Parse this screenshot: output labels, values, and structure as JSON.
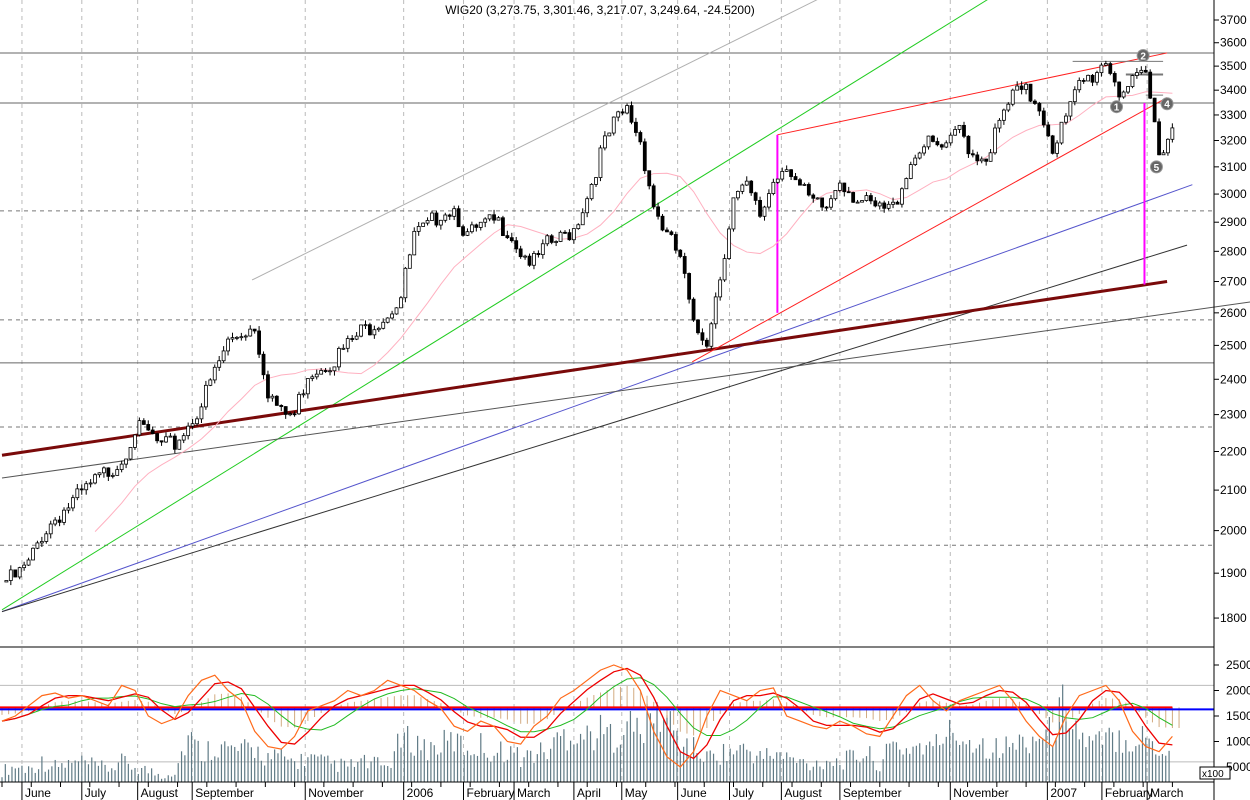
{
  "chart_data": {
    "type": "candlestick",
    "title": "WIG20 (3,273.75, 3,301.46, 3,217.07, 3,249.64, -24.5200)",
    "price_scale": "log",
    "ylim": [
      1750,
      3800
    ],
    "price_ticks": [
      1800,
      1900,
      2000,
      2100,
      2200,
      2300,
      2400,
      2500,
      2600,
      2700,
      2800,
      2900,
      3000,
      3100,
      3200,
      3300,
      3400,
      3500,
      3600,
      3700
    ],
    "x_labels": [
      {
        "label": "June",
        "idx": 1.5
      },
      {
        "label": "July",
        "idx": 6
      },
      {
        "label": "August",
        "idx": 10.2
      },
      {
        "label": "September",
        "idx": 14.3
      },
      {
        "label": "November",
        "idx": 22.8
      },
      {
        "label": "2006",
        "idx": 30.2
      },
      {
        "label": "February",
        "idx": 34.7
      },
      {
        "label": "March",
        "idx": 38.5
      },
      {
        "label": "April",
        "idx": 43
      },
      {
        "label": "May",
        "idx": 46.6
      },
      {
        "label": "June",
        "idx": 50.8
      },
      {
        "label": "July",
        "idx": 54.7
      },
      {
        "label": "August",
        "idx": 58.6
      },
      {
        "label": "September",
        "idx": 63
      },
      {
        "label": "November",
        "idx": 71.3
      },
      {
        "label": "2007",
        "idx": 78.6
      },
      {
        "label": "February",
        "idx": 82.7
      },
      {
        "label": "March",
        "idx": 86.1
      }
    ],
    "close": [
      1880,
      1890,
      1920,
      1990,
      2030,
      2060,
      2090,
      2120,
      2150,
      2180,
      2260,
      2250,
      2210,
      2220,
      2270,
      2330,
      2420,
      2510,
      2540,
      2560,
      2370,
      2300,
      2300,
      2420,
      2440,
      2460,
      2500,
      2540,
      2570,
      2600,
      2650,
      2850,
      2880,
      2940,
      2950,
      2850,
      2880,
      2900,
      2880,
      2800,
      2760,
      2820,
      2840,
      2880,
      2990,
      3150,
      3260,
      3320,
      3200,
      2960,
      2850,
      2780,
      2550,
      2520,
      2720,
      2980,
      3020,
      2920,
      3050,
      3120,
      3020,
      2960,
      2950,
      3060,
      3000,
      2960,
      2940,
      2950,
      3080,
      3180,
      3180,
      3160,
      3250,
      3150,
      3140,
      3260,
      3380,
      3390,
      3340,
      3180,
      3280,
      3420,
      3460,
      3530,
      3400,
      3420,
      3460,
      3160,
      3250
    ],
    "moving_average_period": 8,
    "horizontal_levels": [
      {
        "price": 3556,
        "style": "solid"
      },
      {
        "price": 3348,
        "style": "solid"
      },
      {
        "price": 2448,
        "style": "solid"
      },
      {
        "price": 2940,
        "style": "dashed"
      },
      {
        "price": 2578,
        "style": "dashed"
      },
      {
        "price": 2266,
        "style": "dashed"
      },
      {
        "price": 1965,
        "style": "dashed"
      }
    ],
    "trendlines": [
      {
        "name": "upper-channel-gray",
        "color": "#b0b0b0",
        "width": 1,
        "from": [
          18.8,
          2705
        ],
        "to": [
          61.3,
          3792
        ]
      },
      {
        "name": "green-trendline",
        "color": "#22cc22",
        "width": 1,
        "from": [
          0,
          1818
        ],
        "to": [
          74.1,
          3792
        ]
      },
      {
        "name": "blue-trendline",
        "color": "#5555cc",
        "width": 1,
        "from": [
          0,
          1814
        ],
        "to": [
          89.5,
          3034
        ]
      },
      {
        "name": "black-trendline",
        "color": "#333333",
        "width": 1,
        "from": [
          0,
          1814
        ],
        "to": [
          89.1,
          2821
        ]
      },
      {
        "name": "dark-thin-trendline",
        "color": "#555555",
        "width": 1,
        "from": [
          0,
          2131
        ],
        "to": [
          94,
          2635
        ]
      },
      {
        "name": "maroon-support-line",
        "color": "#7a0a0a",
        "width": 3,
        "from": [
          0,
          2190
        ],
        "to": [
          87.6,
          2700
        ]
      },
      {
        "name": "red-wedge-upper",
        "color": "#ff2020",
        "width": 1,
        "from": [
          58.3,
          3222
        ],
        "to": [
          87.6,
          3556
        ]
      },
      {
        "name": "red-wedge-lower",
        "color": "#ff2020",
        "width": 1,
        "from": [
          51.9,
          2451
        ],
        "to": [
          87.6,
          3370
        ]
      },
      {
        "name": "magenta-measure-1",
        "color": "#ff00ff",
        "width": 2,
        "from": [
          58.3,
          3222
        ],
        "to": [
          58.3,
          2600
        ]
      },
      {
        "name": "magenta-measure-2",
        "color": "#ff00ff",
        "width": 2,
        "from": [
          85.9,
          3348
        ],
        "to": [
          85.9,
          2690
        ]
      },
      {
        "name": "level-3520",
        "color": "#777777",
        "width": 1,
        "from": [
          80.5,
          3520
        ],
        "to": [
          87.3,
          3520
        ]
      },
      {
        "name": "level-3460",
        "color": "#777777",
        "width": 2,
        "from": [
          84.5,
          3465
        ],
        "to": [
          87.3,
          3465
        ]
      },
      {
        "name": "level-3380",
        "color": "#777777",
        "width": 1,
        "from": [
          86,
          3380
        ],
        "to": [
          87.3,
          3380
        ]
      }
    ],
    "markers": [
      {
        "label": "1",
        "idx": 83.8,
        "price": 3333
      },
      {
        "label": "2",
        "idx": 85.8,
        "price": 3545
      },
      {
        "label": "4",
        "idx": 87.6,
        "price": 3345
      },
      {
        "label": "5",
        "idx": 86.8,
        "price": 3100
      }
    ],
    "lower_pane": {
      "ticks": [
        5000,
        10000,
        15000,
        20000,
        25000
      ],
      "multiplier_label": "x100",
      "ylim": [
        2000,
        28500
      ],
      "baseline_blue": 16300,
      "baseline_red": 16700,
      "volume": [
        5000,
        6000,
        5500,
        7000,
        6000,
        6500,
        7000,
        6000,
        5500,
        7000,
        6000,
        5000,
        4000,
        5000,
        13000,
        9000,
        11000,
        10000,
        9500,
        10000,
        8000,
        8000,
        7000,
        8000,
        7000,
        6500,
        6000,
        7000,
        6500,
        6000,
        12000,
        12000,
        10000,
        11000,
        12000,
        10000,
        11000,
        9000,
        10000,
        8000,
        9000,
        9500,
        13000,
        14000,
        13000,
        14000,
        13000,
        16000,
        14000,
        18000,
        17000,
        12000,
        10000,
        8000,
        9000,
        9500,
        10000,
        8000,
        9000,
        8000,
        7000,
        6500,
        7500,
        7000,
        8000,
        9000,
        6500,
        11000,
        10000,
        11000,
        10000,
        14000,
        13000,
        12000,
        11000,
        10000,
        11000,
        12000,
        13000,
        14000,
        22000,
        13000,
        11000,
        12000,
        13000,
        12000,
        13000,
        10000,
        9000
      ],
      "oscillator": [
        14000,
        15000,
        17000,
        19000,
        19500,
        18500,
        19000,
        18000,
        17000,
        21000,
        20000,
        15000,
        13500,
        14500,
        19000,
        22000,
        23000,
        20000,
        18000,
        12000,
        9000,
        8500,
        11000,
        16000,
        17000,
        18000,
        20000,
        19000,
        20000,
        22000,
        21000,
        20000,
        18000,
        16500,
        13000,
        12000,
        14000,
        13000,
        10000,
        9500,
        13000,
        15000,
        18500,
        20000,
        22000,
        24000,
        25000,
        24000,
        20000,
        12000,
        7000,
        5000,
        8000,
        15000,
        20000,
        19000,
        18000,
        20000,
        20500,
        15000,
        14000,
        13000,
        12500,
        14000,
        13000,
        11500,
        11000,
        15000,
        19000,
        21000,
        18000,
        16000,
        18000,
        19000,
        20000,
        21000,
        18000,
        14000,
        11000,
        9000,
        15000,
        19000,
        20000,
        21000,
        18000,
        12000,
        9000,
        8000,
        11000
      ]
    },
    "colors": {
      "up": "#ffffff",
      "down": "#000000",
      "ma": "#ffb0c0",
      "volume": "#5f7a85",
      "osc": "#ff6a1a",
      "signal_fast": "#ee0000",
      "signal_slow": "#22bb22",
      "histogram": "#d2aa80"
    }
  }
}
